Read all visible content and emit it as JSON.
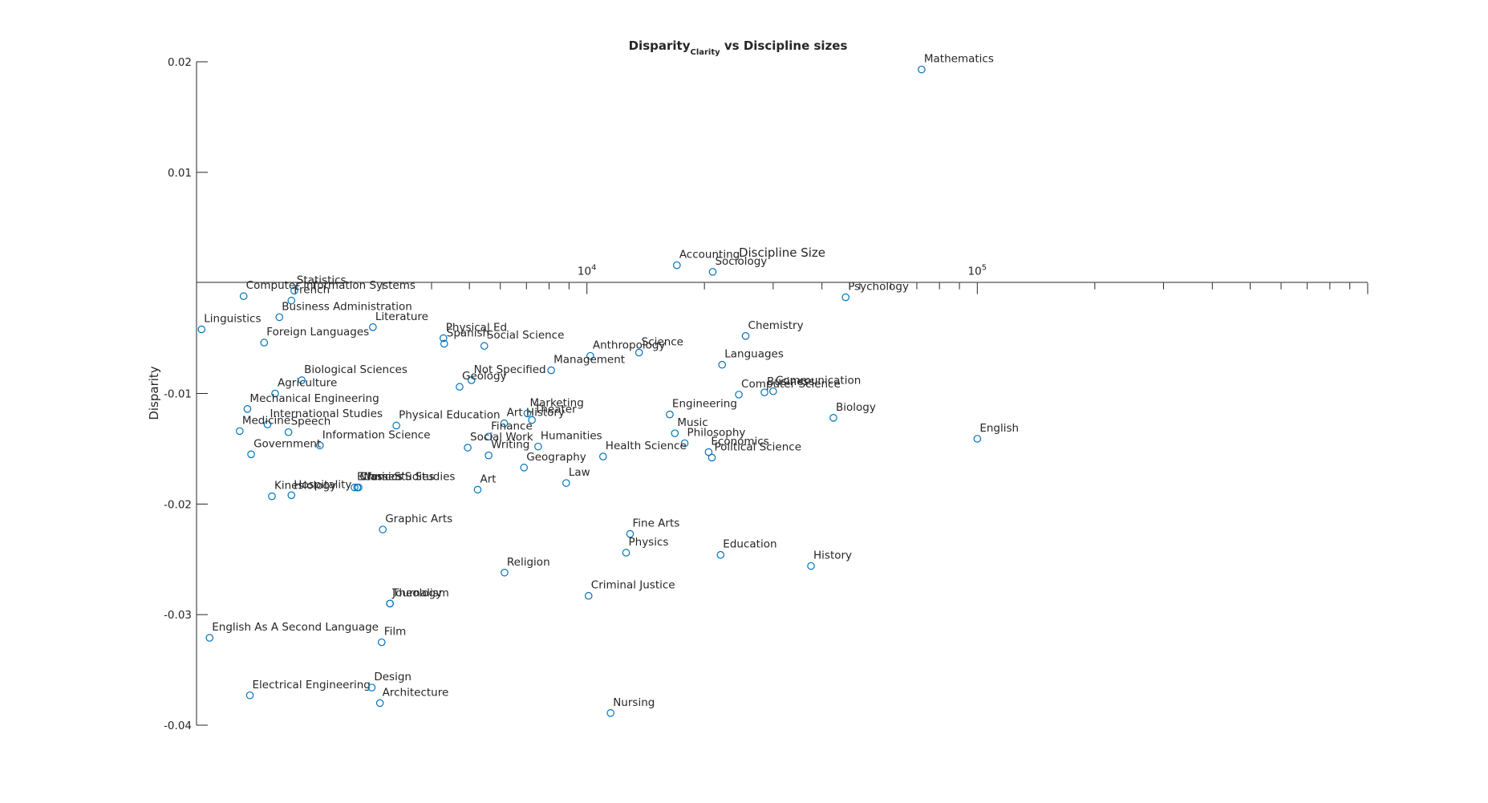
{
  "chart_data": {
    "type": "scatter",
    "title": "Disparity",
    "title_subscript": "Clarity",
    "title_suffix": " vs Discipline sizes",
    "xlabel": "Discipline Size",
    "ylabel": "Disparity",
    "xscale": "log",
    "ylim": [
      -0.04,
      0.02
    ],
    "xlim": [
      1000,
      1000000
    ],
    "yticks": [
      {
        "value": 0.02,
        "label": "0.02"
      },
      {
        "value": 0.01,
        "label": "0.01"
      },
      {
        "value": -0.01,
        "label": "-0.01"
      },
      {
        "value": -0.02,
        "label": "-0.02"
      },
      {
        "value": -0.03,
        "label": "-0.03"
      },
      {
        "value": -0.04,
        "label": "-0.04"
      }
    ],
    "xtick_labels": [
      {
        "value": 10000,
        "base": "10",
        "exp": "4"
      },
      {
        "value": 100000,
        "base": "10",
        "exp": "5"
      }
    ],
    "grid": false,
    "marker_color": "#0072BD",
    "points": [
      {
        "label": "Mathematics",
        "x": 72000,
        "y": 0.0193
      },
      {
        "label": "Accounting",
        "x": 17000,
        "y": 0.0016
      },
      {
        "label": "Sociology",
        "x": 21000,
        "y": 0.001
      },
      {
        "label": "Psychology",
        "x": 46000,
        "y": -0.0013
      },
      {
        "label": "English",
        "x": 100000,
        "y": -0.0141
      },
      {
        "label": "Computer Information Systems",
        "x": 1320,
        "y": -0.0012
      },
      {
        "label": "Statistics",
        "x": 1780,
        "y": -0.0007
      },
      {
        "label": "French",
        "x": 1750,
        "y": -0.0016
      },
      {
        "label": "Business Administration",
        "x": 1630,
        "y": -0.0031
      },
      {
        "label": "Linguistics",
        "x": 1030,
        "y": -0.0042
      },
      {
        "label": "Foreign Languages",
        "x": 1490,
        "y": -0.0054
      },
      {
        "label": "Literature",
        "x": 2830,
        "y": -0.004
      },
      {
        "label": "Physical Ed",
        "x": 4290,
        "y": -0.005
      },
      {
        "label": "Spanish",
        "x": 4310,
        "y": -0.0055
      },
      {
        "label": "Social Science",
        "x": 5460,
        "y": -0.0057
      },
      {
        "label": "Science",
        "x": 13600,
        "y": -0.0063
      },
      {
        "label": "Anthropology",
        "x": 10200,
        "y": -0.0066
      },
      {
        "label": "Chemistry",
        "x": 25500,
        "y": -0.0048
      },
      {
        "label": "Languages",
        "x": 22200,
        "y": -0.0074
      },
      {
        "label": "Management",
        "x": 8100,
        "y": -0.0079
      },
      {
        "label": "Not Specified",
        "x": 5060,
        "y": -0.0088
      },
      {
        "label": "Geology",
        "x": 4720,
        "y": -0.0094
      },
      {
        "label": "Biological Sciences",
        "x": 1860,
        "y": -0.0088
      },
      {
        "label": "Agriculture",
        "x": 1590,
        "y": -0.01
      },
      {
        "label": "Computer Science",
        "x": 24500,
        "y": -0.0101
      },
      {
        "label": "Business",
        "x": 28500,
        "y": -0.0099
      },
      {
        "label": "Communication",
        "x": 30000,
        "y": -0.0098
      },
      {
        "label": "Mechanical Engineering",
        "x": 1350,
        "y": -0.0114
      },
      {
        "label": "International Studies",
        "x": 1520,
        "y": -0.0128
      },
      {
        "label": "Speech",
        "x": 1720,
        "y": -0.0135
      },
      {
        "label": "Medicine",
        "x": 1290,
        "y": -0.0134
      },
      {
        "label": "Information Science",
        "x": 2070,
        "y": -0.0147
      },
      {
        "label": "Physical Education",
        "x": 3250,
        "y": -0.0129
      },
      {
        "label": "Art History",
        "x": 6140,
        "y": -0.0127
      },
      {
        "label": "Theater",
        "x": 7230,
        "y": -0.0124
      },
      {
        "label": "Marketing",
        "x": 7040,
        "y": -0.0118
      },
      {
        "label": "Finance",
        "x": 5600,
        "y": -0.0139
      },
      {
        "label": "Engineering",
        "x": 16300,
        "y": -0.0119
      },
      {
        "label": "Music",
        "x": 16800,
        "y": -0.0136
      },
      {
        "label": "Philosophy",
        "x": 17800,
        "y": -0.0145
      },
      {
        "label": "Economics",
        "x": 20500,
        "y": -0.0153
      },
      {
        "label": "Political Science",
        "x": 20900,
        "y": -0.0158
      },
      {
        "label": "Biology",
        "x": 42800,
        "y": -0.0122
      },
      {
        "label": "Government",
        "x": 1380,
        "y": -0.0155
      },
      {
        "label": "Social Work",
        "x": 4950,
        "y": -0.0149
      },
      {
        "label": "Writing",
        "x": 5600,
        "y": -0.0156
      },
      {
        "label": "Humanities",
        "x": 7500,
        "y": -0.0148
      },
      {
        "label": "Health Science",
        "x": 11000,
        "y": -0.0157
      },
      {
        "label": "Geography",
        "x": 6900,
        "y": -0.0167
      },
      {
        "label": "Law",
        "x": 8850,
        "y": -0.0181
      },
      {
        "label": "Art",
        "x": 5250,
        "y": -0.0187
      },
      {
        "label": "Classics",
        "x": 2580,
        "y": -0.0185
      },
      {
        "label": "Ethnic Studies",
        "x": 2540,
        "y": -0.0185
      },
      {
        "label": "Women'S Studies",
        "x": 2600,
        "y": -0.0185
      },
      {
        "label": "Kinesiology",
        "x": 1560,
        "y": -0.0193
      },
      {
        "label": "Hospitality",
        "x": 1750,
        "y": -0.0192
      },
      {
        "label": "Graphic Arts",
        "x": 3000,
        "y": -0.0223
      },
      {
        "label": "Fine Arts",
        "x": 12900,
        "y": -0.0227
      },
      {
        "label": "Physics",
        "x": 12600,
        "y": -0.0244
      },
      {
        "label": "Education",
        "x": 22000,
        "y": -0.0246
      },
      {
        "label": "History",
        "x": 37500,
        "y": -0.0256
      },
      {
        "label": "Religion",
        "x": 6150,
        "y": -0.0262
      },
      {
        "label": "Criminal Justice",
        "x": 10100,
        "y": -0.0283
      },
      {
        "label": "Journalism",
        "x": 3130,
        "y": -0.029
      },
      {
        "label": "Theology",
        "x": 3130,
        "y": -0.029
      },
      {
        "label": "English As A Second Language",
        "x": 1080,
        "y": -0.0321
      },
      {
        "label": "Film",
        "x": 2980,
        "y": -0.0325
      },
      {
        "label": "Electrical Engineering",
        "x": 1370,
        "y": -0.0373
      },
      {
        "label": "Design",
        "x": 2810,
        "y": -0.0366
      },
      {
        "label": "Architecture",
        "x": 2950,
        "y": -0.038
      },
      {
        "label": "Nursing",
        "x": 11500,
        "y": -0.0389
      }
    ]
  }
}
